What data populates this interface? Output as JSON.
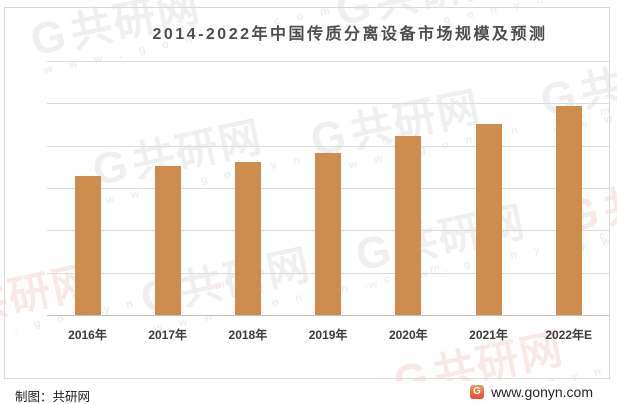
{
  "title": "2014-2022年中国传质分离设备市场规模及预测",
  "chart_data": {
    "type": "bar",
    "title": "2014-2022年中国传质分离设备市场规模及预测",
    "categories": [
      "2016年",
      "2017年",
      "2018年",
      "2019年",
      "2020年",
      "2021年",
      "2022年E"
    ],
    "values": [
      3.29,
      3.51,
      3.61,
      3.83,
      4.22,
      4.51,
      4.94
    ],
    "xlabel": "",
    "ylabel": "",
    "ylim": [
      0,
      6
    ],
    "y_tick_labels_visible": false,
    "grid": "horizontal",
    "legend": "none",
    "bar_color": "#CF8C4F",
    "note": "y-axis shows no tick labels in the image; values are estimated in gridline units (1 unit = 1 horizontal gridline interval)"
  },
  "watermark": {
    "logo_glyph": "G",
    "brand": "共研网",
    "url": "www.gonyn.com",
    "gray_color": "#efefef",
    "pink_color": "#f8e9e7"
  },
  "footer": {
    "credit": "制图：共研网",
    "site": "www.gonyn.com",
    "logo_glyph": "G"
  },
  "colors": {
    "bar": "#CF8C4F",
    "gridline": "#dcdcdc",
    "axis_line": "#c0c0c0",
    "title_text": "#4d4d4d",
    "label_text": "#3b3b3b",
    "frame_border": "#d9d9d9",
    "logo_gradient_top": "#f2a05e",
    "logo_gradient_bottom": "#e84c3d"
  }
}
